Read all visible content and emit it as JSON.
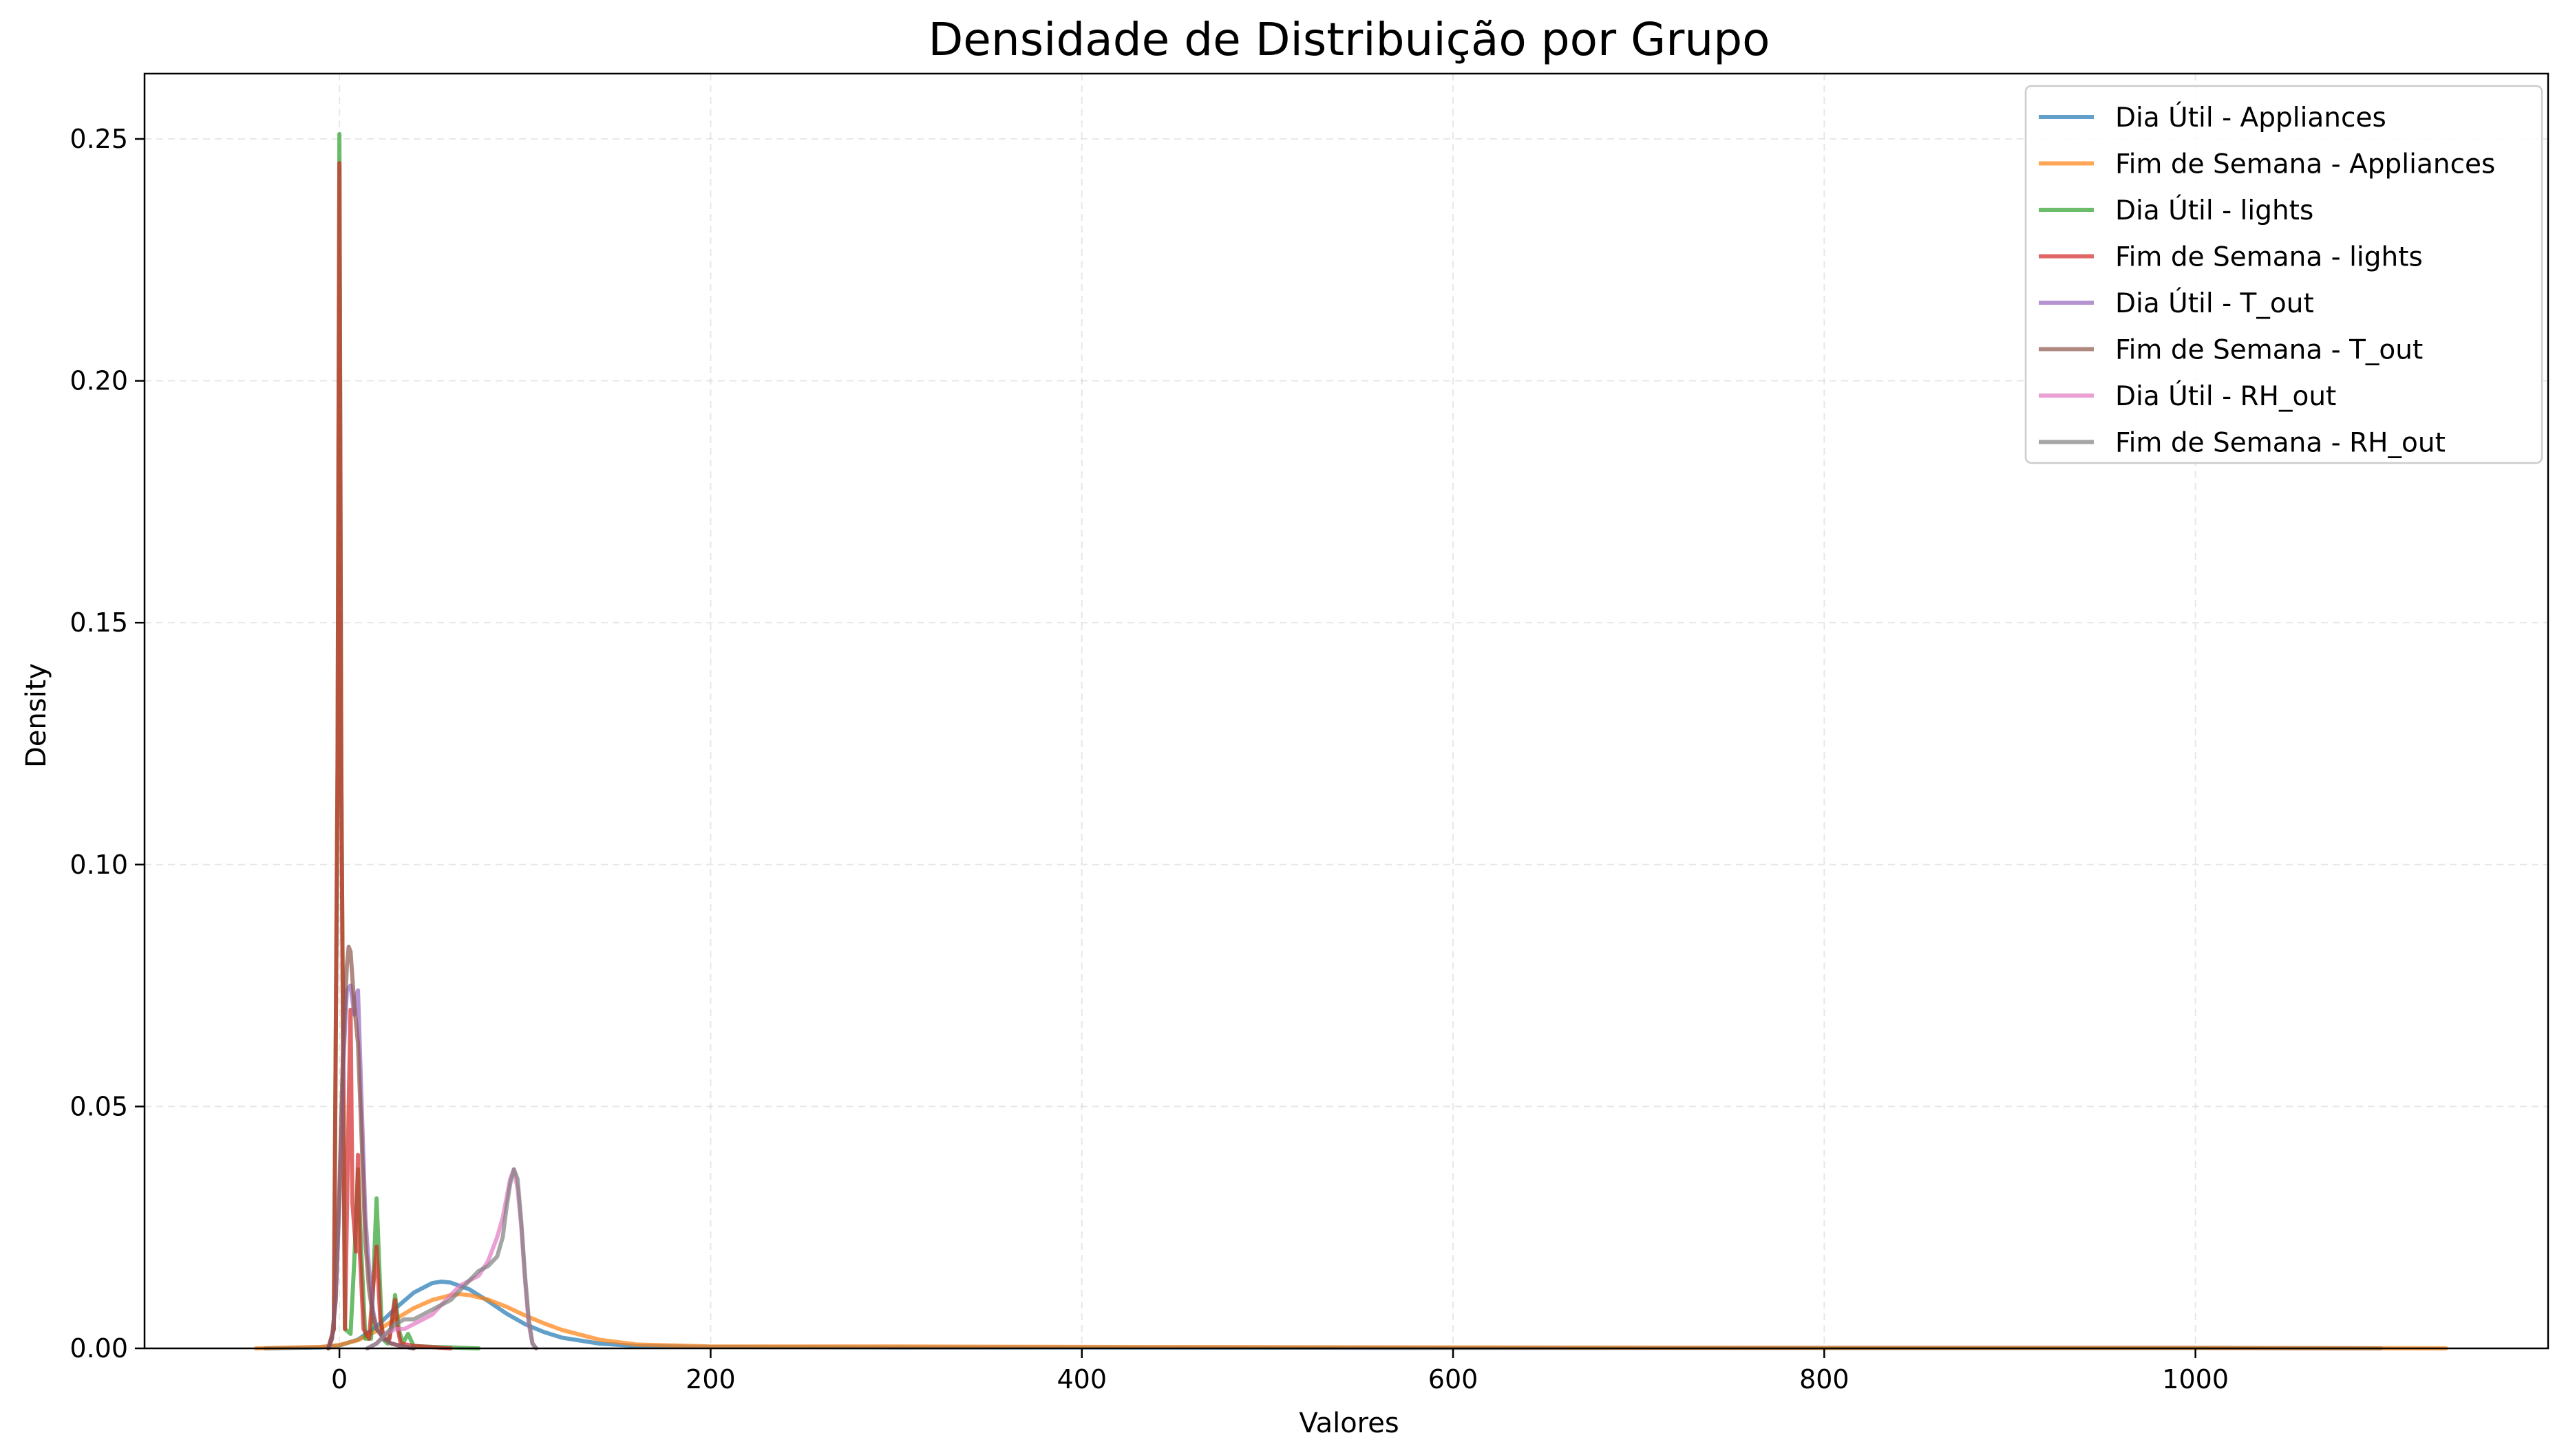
{
  "chart_data": {
    "type": "line",
    "title": "Densidade de Distribuição por Grupo",
    "xlabel": "Valores",
    "ylabel": "Density",
    "xlim": [
      -105,
      1190
    ],
    "ylim": [
      0,
      0.2635
    ],
    "xticks": [
      0,
      200,
      400,
      600,
      800,
      1000
    ],
    "yticks": [
      0.0,
      0.05,
      0.1,
      0.15,
      0.2,
      0.25
    ],
    "ytick_labels": [
      "0.00",
      "0.05",
      "0.10",
      "0.15",
      "0.20",
      "0.25"
    ],
    "grid": true,
    "legend_position": "upper-right",
    "series": [
      {
        "name": "Dia Útil - Appliances",
        "color": "#1f77b4",
        "x": [
          -40,
          -10,
          0,
          10,
          20,
          30,
          40,
          50,
          55,
          60,
          70,
          80,
          90,
          100,
          110,
          120,
          140,
          160,
          200,
          300,
          400,
          600,
          800,
          1000,
          1100
        ],
        "y": [
          0,
          0.0002,
          0.0006,
          0.0018,
          0.0045,
          0.0082,
          0.0115,
          0.0135,
          0.0138,
          0.0136,
          0.0122,
          0.0098,
          0.0072,
          0.005,
          0.0034,
          0.0022,
          0.001,
          0.0005,
          0.0003,
          0.0002,
          0.0002,
          0.0001,
          0.0001,
          0.0001,
          0
        ]
      },
      {
        "name": "Fim de Semana - Appliances",
        "color": "#ff7f0e",
        "x": [
          -45,
          -10,
          0,
          10,
          20,
          30,
          40,
          50,
          60,
          65,
          70,
          80,
          90,
          100,
          110,
          120,
          140,
          160,
          200,
          300,
          400,
          600,
          800,
          1000,
          1135
        ],
        "y": [
          0,
          0.0003,
          0.0007,
          0.0017,
          0.0036,
          0.006,
          0.0083,
          0.01,
          0.011,
          0.0112,
          0.011,
          0.0101,
          0.0086,
          0.0068,
          0.0052,
          0.0038,
          0.0018,
          0.0008,
          0.0004,
          0.0004,
          0.0003,
          0.0002,
          0.0001,
          0.0001,
          0
        ]
      },
      {
        "name": "Dia Útil - lights",
        "color": "#2ca02c",
        "x": [
          -6,
          -3,
          -1,
          0,
          1,
          3,
          6,
          8,
          10,
          12,
          14,
          17,
          20,
          23,
          26,
          28,
          30,
          32,
          34,
          37,
          40,
          50,
          60,
          75
        ],
        "y": [
          0,
          0.004,
          0.12,
          0.251,
          0.12,
          0.004,
          0.003,
          0.018,
          0.037,
          0.018,
          0.002,
          0.002,
          0.031,
          0.002,
          0.001,
          0.004,
          0.011,
          0.004,
          0.001,
          0.003,
          0.0005,
          0.0003,
          0.0002,
          0
        ]
      },
      {
        "name": "Fim de Semana - lights",
        "color": "#d62728",
        "x": [
          -6,
          -3,
          -1,
          0,
          1,
          3,
          5,
          6,
          7,
          9,
          10,
          11,
          13,
          16,
          18,
          20,
          22,
          24,
          27,
          29,
          30,
          31,
          33,
          40,
          60
        ],
        "y": [
          0,
          0.004,
          0.12,
          0.245,
          0.12,
          0.004,
          0.05,
          0.07,
          0.03,
          0.02,
          0.04,
          0.02,
          0.004,
          0.002,
          0.012,
          0.021,
          0.006,
          0.002,
          0.002,
          0.008,
          0.01,
          0.005,
          0.001,
          0.0005,
          0
        ]
      },
      {
        "name": "Dia Útil - T_out",
        "color": "#9467bd",
        "x": [
          -6,
          -4,
          -2,
          0,
          2,
          4,
          6,
          8,
          9,
          10,
          12,
          14,
          16,
          18,
          20,
          24,
          28,
          32,
          36,
          40
        ],
        "y": [
          0,
          0.002,
          0.01,
          0.03,
          0.058,
          0.074,
          0.075,
          0.069,
          0.073,
          0.074,
          0.05,
          0.027,
          0.016,
          0.008,
          0.004,
          0.002,
          0.001,
          0.0006,
          0.0003,
          0
        ]
      },
      {
        "name": "Fim de Semana - T_out",
        "color": "#8c564b",
        "x": [
          -6,
          -4,
          -2,
          0,
          2,
          4,
          5,
          6,
          8,
          10,
          12,
          14,
          16,
          18,
          20,
          24,
          28,
          32,
          36,
          40
        ],
        "y": [
          0,
          0.002,
          0.01,
          0.033,
          0.062,
          0.079,
          0.083,
          0.082,
          0.071,
          0.063,
          0.043,
          0.022,
          0.012,
          0.007,
          0.004,
          0.002,
          0.001,
          0.0006,
          0.0003,
          0
        ]
      },
      {
        "name": "Dia Útil - RH_out",
        "color": "#e377c2",
        "x": [
          15,
          20,
          25,
          30,
          35,
          40,
          45,
          50,
          55,
          60,
          65,
          70,
          75,
          80,
          85,
          88,
          90,
          92,
          94,
          96,
          98,
          100,
          102,
          104,
          106
        ],
        "y": [
          0,
          0.001,
          0.003,
          0.004,
          0.004,
          0.005,
          0.006,
          0.007,
          0.009,
          0.011,
          0.013,
          0.014,
          0.015,
          0.018,
          0.023,
          0.027,
          0.031,
          0.035,
          0.037,
          0.033,
          0.025,
          0.014,
          0.005,
          0.001,
          0
        ]
      },
      {
        "name": "Fim de Semana - RH_out",
        "color": "#7f7f7f",
        "x": [
          15,
          20,
          25,
          30,
          35,
          40,
          45,
          50,
          55,
          60,
          65,
          70,
          75,
          80,
          85,
          88,
          90,
          92,
          94,
          96,
          98,
          100,
          102,
          104,
          106
        ],
        "y": [
          0,
          0.001,
          0.003,
          0.005,
          0.006,
          0.006,
          0.007,
          0.008,
          0.009,
          0.01,
          0.012,
          0.014,
          0.016,
          0.017,
          0.019,
          0.023,
          0.029,
          0.034,
          0.037,
          0.035,
          0.026,
          0.015,
          0.006,
          0.001,
          0
        ]
      }
    ]
  }
}
